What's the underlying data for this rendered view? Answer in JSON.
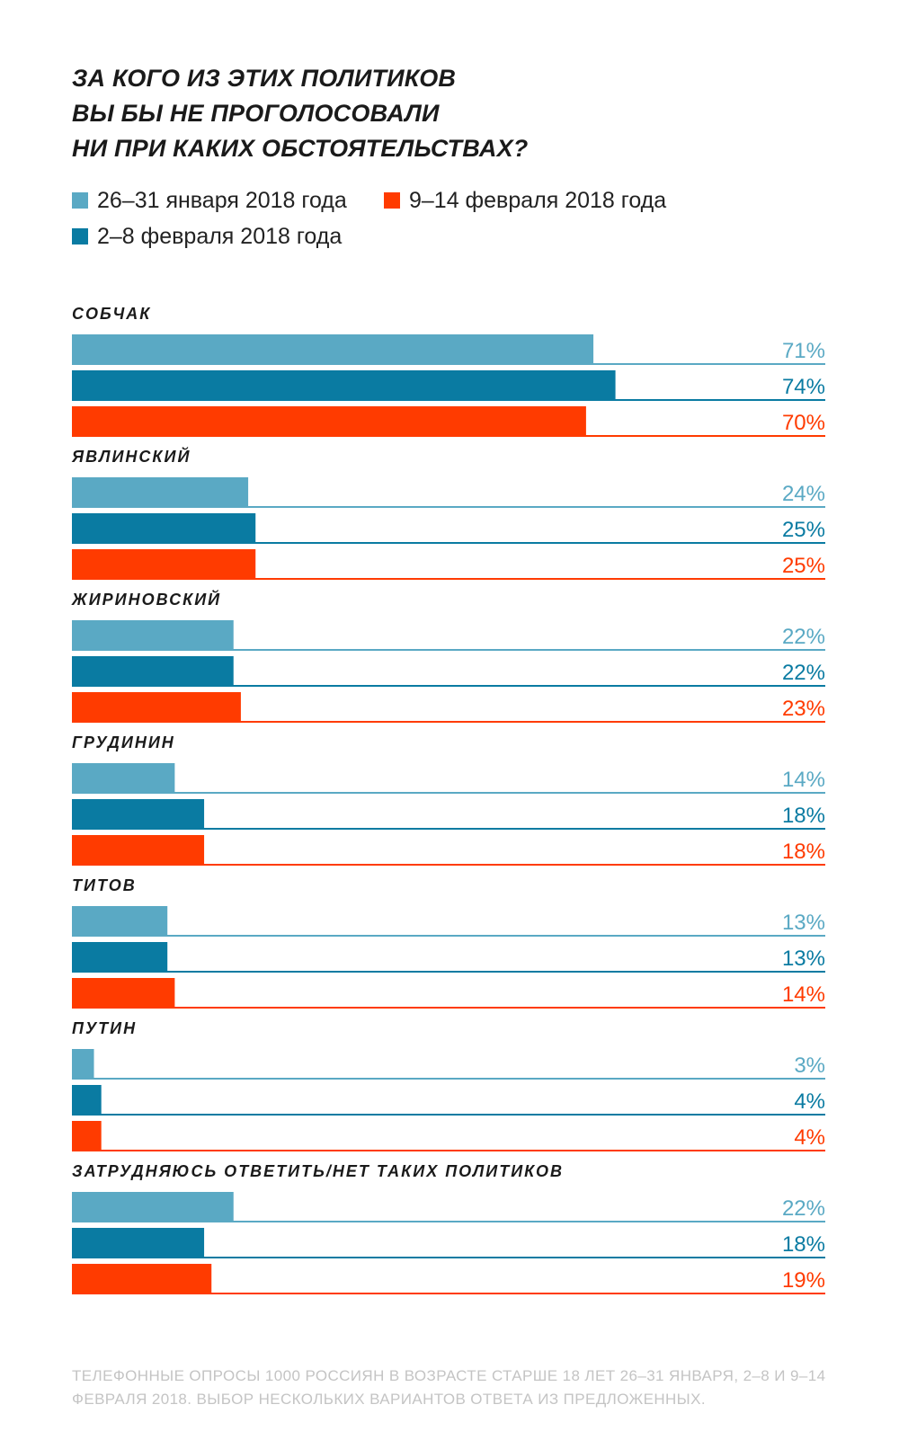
{
  "title_lines": [
    "ЗА КОГО ИЗ ЭТИХ ПОЛИТИКОВ",
    "ВЫ БЫ НЕ ПРОГОЛОСОВАЛИ",
    "НИ ПРИ КАКИХ ОБСТОЯТЕЛЬСТВАХ?"
  ],
  "colors": {
    "series1": "#5aa9c4",
    "series2": "#0a7ba2",
    "series3": "#ff3b00",
    "text": "#1a1a1a",
    "footnote": "#c4c4c4"
  },
  "chart_data": {
    "type": "bar",
    "orientation": "horizontal",
    "title": "ЗА КОГО ИЗ ЭТИХ ПОЛИТИКОВ ВЫ БЫ НЕ ПРОГОЛОСОВАЛИ НИ ПРИ КАКИХ ОБСТОЯТЕЛЬСТВАХ?",
    "value_unit": "%",
    "xlim": [
      0,
      100
    ],
    "legend_placement": "top-left",
    "categories": [
      "СОБЧАК",
      "ЯВЛИНСКИЙ",
      "ЖИРИНОВСКИЙ",
      "ГРУДИНИН",
      "ТИТОВ",
      "ПУТИН",
      "ЗАТРУДНЯЮСЬ ОТВЕТИТЬ/НЕТ ТАКИХ ПОЛИТИКОВ"
    ],
    "series": [
      {
        "name": "26–31 января 2018 года",
        "values": [
          71,
          24,
          22,
          14,
          13,
          3,
          22
        ]
      },
      {
        "name": "2–8 февраля 2018 года",
        "values": [
          74,
          25,
          22,
          18,
          13,
          4,
          18
        ]
      },
      {
        "name": "9–14 февраля 2018 года",
        "values": [
          70,
          25,
          23,
          18,
          14,
          4,
          19
        ]
      }
    ]
  },
  "footnote": "ТЕЛЕФОННЫЕ ОПРОСЫ 1000 РОССИЯН В ВОЗРАСТЕ СТАРШЕ 18 ЛЕТ 26–31 ЯНВАРЯ, 2–8 И 9–14 ФЕВРАЛЯ 2018. ВЫБОР НЕСКОЛЬКИХ ВАРИАНТОВ ОТВЕТА ИЗ ПРЕДЛОЖЕННЫХ."
}
